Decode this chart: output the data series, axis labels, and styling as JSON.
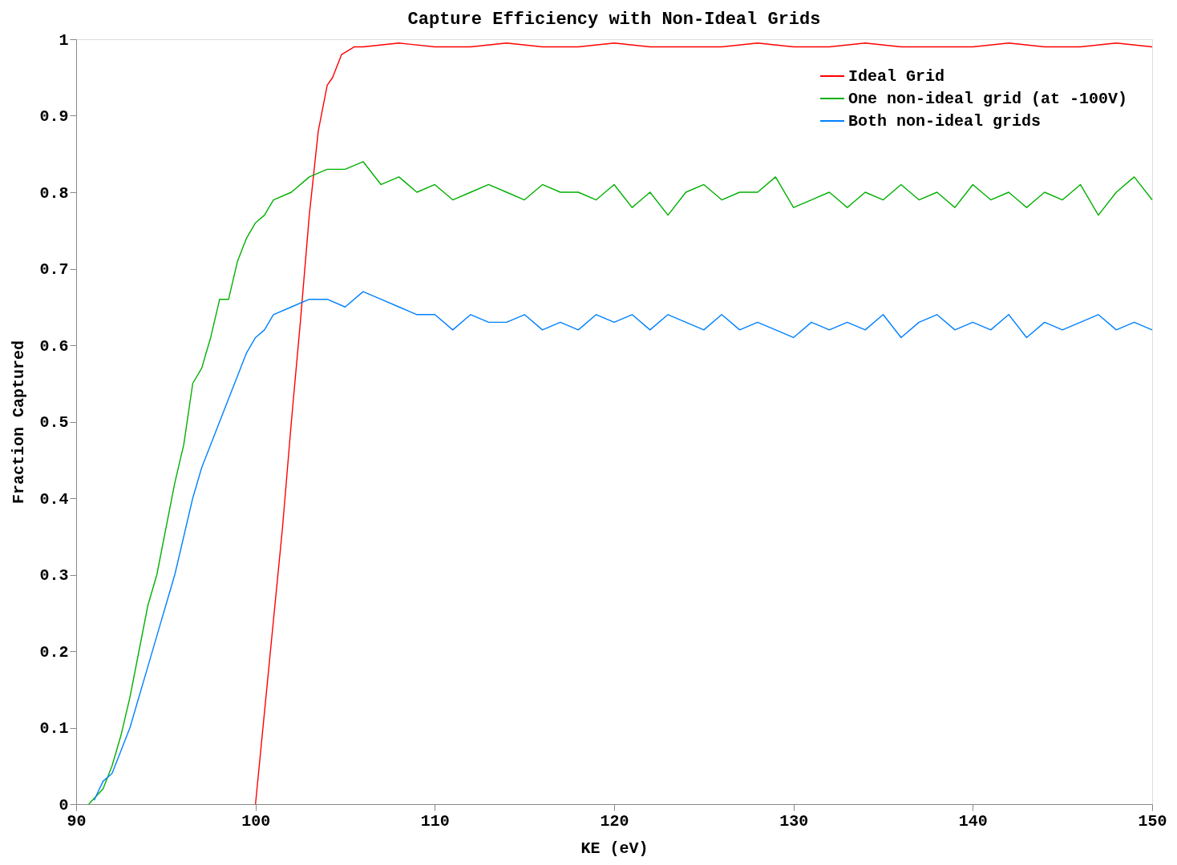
{
  "chart_data": {
    "type": "line",
    "title": "Capture Efficiency with Non-Ideal Grids",
    "xlabel": "KE (eV)",
    "ylabel": "Fraction Captured",
    "xlim": [
      90,
      150
    ],
    "xticks": [
      90,
      100,
      110,
      120,
      130,
      140,
      150
    ],
    "ylim": [
      0,
      1
    ],
    "yticks": [
      0,
      0.1,
      0.2,
      0.3,
      0.4,
      0.5,
      0.6,
      0.7,
      0.8,
      0.9,
      1
    ],
    "grid": false,
    "legend": "top right",
    "line_style": "solid",
    "marker": "none",
    "series": [
      {
        "name": "Ideal Grid",
        "color": "#ff0000",
        "x": [
          100,
          100.5,
          101,
          101.5,
          102,
          102.5,
          103,
          103.5,
          104,
          104.3,
          104.8,
          105.5,
          106,
          108,
          110,
          112,
          114,
          116,
          118,
          120,
          122,
          124,
          126,
          128,
          130,
          132,
          134,
          136,
          138,
          140,
          142,
          144,
          146,
          148,
          150
        ],
        "values": [
          0,
          0.12,
          0.24,
          0.36,
          0.5,
          0.63,
          0.77,
          0.88,
          0.94,
          0.95,
          0.98,
          0.99,
          0.99,
          0.995,
          0.99,
          0.99,
          0.995,
          0.99,
          0.99,
          0.995,
          0.99,
          0.99,
          0.99,
          0.995,
          0.99,
          0.99,
          0.995,
          0.99,
          0.99,
          0.99,
          0.995,
          0.99,
          0.99,
          0.995,
          0.99
        ]
      },
      {
        "name": "One non-ideal grid (at -100V)",
        "color": "#00b000",
        "x": [
          90.7,
          91.5,
          92,
          92.5,
          93,
          93.5,
          94,
          94.5,
          95,
          95.5,
          96,
          96.5,
          97,
          97.5,
          98,
          98.5,
          99,
          99.5,
          100,
          100.5,
          101,
          102,
          103,
          104,
          105,
          106,
          107,
          108,
          109,
          110,
          111,
          112,
          113,
          114,
          115,
          116,
          117,
          118,
          119,
          120,
          121,
          122,
          123,
          124,
          125,
          126,
          127,
          128,
          129,
          130,
          131,
          132,
          133,
          134,
          135,
          136,
          137,
          138,
          139,
          140,
          141,
          142,
          143,
          144,
          145,
          146,
          147,
          148,
          149,
          150
        ],
        "values": [
          0,
          0.02,
          0.05,
          0.09,
          0.14,
          0.2,
          0.26,
          0.3,
          0.36,
          0.42,
          0.47,
          0.55,
          0.57,
          0.61,
          0.66,
          0.66,
          0.71,
          0.74,
          0.76,
          0.77,
          0.79,
          0.8,
          0.82,
          0.83,
          0.83,
          0.84,
          0.81,
          0.82,
          0.8,
          0.81,
          0.79,
          0.8,
          0.81,
          0.8,
          0.79,
          0.81,
          0.8,
          0.8,
          0.79,
          0.81,
          0.78,
          0.8,
          0.77,
          0.8,
          0.81,
          0.79,
          0.8,
          0.8,
          0.82,
          0.78,
          0.79,
          0.8,
          0.78,
          0.8,
          0.79,
          0.81,
          0.79,
          0.8,
          0.78,
          0.81,
          0.79,
          0.8,
          0.78,
          0.8,
          0.79,
          0.81,
          0.77,
          0.8,
          0.82,
          0.79
        ]
      },
      {
        "name": "Both non-ideal grids",
        "color": "#0080ff",
        "x": [
          91,
          91.5,
          92,
          92.5,
          93,
          93.5,
          94,
          94.5,
          95,
          95.5,
          96,
          96.5,
          97,
          97.5,
          98,
          98.5,
          99,
          99.5,
          100,
          100.5,
          101,
          102,
          103,
          104,
          105,
          106,
          107,
          108,
          109,
          110,
          111,
          112,
          113,
          114,
          115,
          116,
          117,
          118,
          119,
          120,
          121,
          122,
          123,
          124,
          125,
          126,
          127,
          128,
          129,
          130,
          131,
          132,
          133,
          134,
          135,
          136,
          137,
          138,
          139,
          140,
          141,
          142,
          143,
          144,
          145,
          146,
          147,
          148,
          149,
          150
        ],
        "values": [
          0.005,
          0.03,
          0.04,
          0.07,
          0.1,
          0.14,
          0.18,
          0.22,
          0.26,
          0.3,
          0.35,
          0.4,
          0.44,
          0.47,
          0.5,
          0.53,
          0.56,
          0.59,
          0.61,
          0.62,
          0.64,
          0.65,
          0.66,
          0.66,
          0.65,
          0.67,
          0.66,
          0.65,
          0.64,
          0.64,
          0.62,
          0.64,
          0.63,
          0.63,
          0.64,
          0.62,
          0.63,
          0.62,
          0.64,
          0.63,
          0.64,
          0.62,
          0.64,
          0.63,
          0.62,
          0.64,
          0.62,
          0.63,
          0.62,
          0.61,
          0.63,
          0.62,
          0.63,
          0.62,
          0.64,
          0.61,
          0.63,
          0.64,
          0.62,
          0.63,
          0.62,
          0.64,
          0.61,
          0.63,
          0.62,
          0.63,
          0.64,
          0.62,
          0.63,
          0.62
        ]
      }
    ]
  }
}
